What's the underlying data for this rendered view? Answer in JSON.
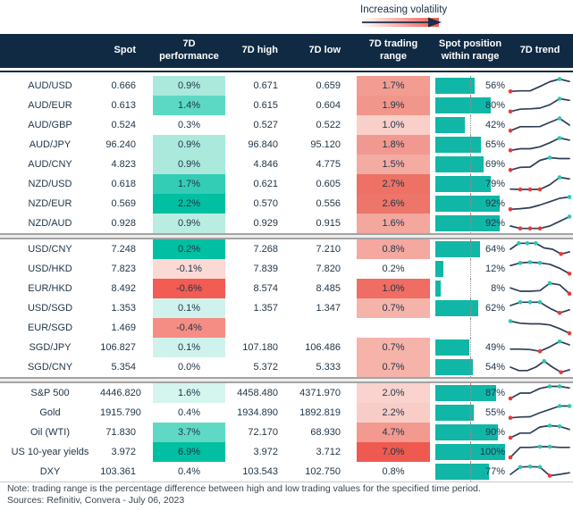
{
  "legend": {
    "label": "Increasing volatility"
  },
  "colors": {
    "header_bg": "#102a43",
    "accent_teal": "#00bfa2",
    "accent_red": "#f2564d",
    "position_bar": "#11b7a6",
    "spark_line": "#2e3e57",
    "spark_high_dot": "#2cc5b4",
    "spark_low_dot": "#e63c36"
  },
  "chart_data": {
    "type": "table",
    "columns": [
      "",
      "Spot",
      "7D performance",
      "7D high",
      "7D low",
      "7D trading range",
      "Spot position within range",
      "7D trend"
    ],
    "sections": [
      {
        "rows": [
          {
            "name": "AUD/USD",
            "spot": "0.666",
            "perf": "0.9%",
            "perf_color": "#abe9dd",
            "high": "0.671",
            "low": "0.659",
            "range": "1.7%",
            "range_color": "#f29c92",
            "position_pct": 56,
            "position_label": "56%",
            "trend": {
              "shape": [
                0.08,
                0.12,
                0.12,
                0.45,
                0.8,
                1.0,
                0.82
              ],
              "high_markers": [
                5
              ],
              "low_markers": [
                0
              ]
            }
          },
          {
            "name": "AUD/EUR",
            "spot": "0.613",
            "perf": "1.4%",
            "perf_color": "#5cd9c5",
            "high": "0.615",
            "low": "0.604",
            "range": "1.9%",
            "range_color": "#f1968b",
            "position_pct": 80,
            "position_label": "80%",
            "trend": {
              "shape": [
                0.05,
                0.22,
                0.25,
                0.3,
                0.55,
                1.0,
                0.88
              ],
              "high_markers": [
                5
              ],
              "low_markers": [
                0
              ]
            }
          },
          {
            "name": "AUD/GBP",
            "spot": "0.524",
            "perf": "0.3%",
            "perf_color": "#ffffff",
            "high": "0.527",
            "low": "0.522",
            "range": "1.0%",
            "range_color": "#f9cfc9",
            "position_pct": 42,
            "position_label": "42%",
            "trend": {
              "shape": [
                0.08,
                0.38,
                0.38,
                0.39,
                0.7,
                1.0,
                0.5
              ],
              "high_markers": [
                5
              ],
              "low_markers": [
                0
              ]
            }
          },
          {
            "name": "AUD/JPY",
            "spot": "96.240",
            "perf": "0.9%",
            "perf_color": "#abe9dd",
            "high": "96.840",
            "low": "95.120",
            "range": "1.8%",
            "range_color": "#f19990",
            "position_pct": 65,
            "position_label": "65%",
            "trend": {
              "shape": [
                0.08,
                0.2,
                0.2,
                0.35,
                0.65,
                1.0,
                0.85
              ],
              "high_markers": [
                5
              ],
              "low_markers": [
                0
              ]
            }
          },
          {
            "name": "AUD/CNY",
            "spot": "4.823",
            "perf": "0.9%",
            "perf_color": "#abe9dd",
            "high": "4.846",
            "low": "4.775",
            "range": "1.5%",
            "range_color": "#f4aba2",
            "position_pct": 69,
            "position_label": "69%",
            "trend": {
              "shape": [
                0.08,
                0.28,
                0.3,
                0.8,
                1.0,
                0.93,
                0.93
              ],
              "high_markers": [
                4
              ],
              "low_markers": [
                0
              ]
            }
          },
          {
            "name": "NZD/USD",
            "spot": "0.618",
            "perf": "1.7%",
            "perf_color": "#33cdb6",
            "high": "0.621",
            "low": "0.605",
            "range": "2.7%",
            "range_color": "#ed7165",
            "position_pct": 79,
            "position_label": "79%",
            "trend": {
              "shape": [
                0.12,
                0.1,
                0.1,
                0.1,
                0.45,
                1.0,
                0.88
              ],
              "high_markers": [
                5
              ],
              "low_markers": [
                1,
                2,
                3
              ]
            }
          },
          {
            "name": "NZD/EUR",
            "spot": "0.569",
            "perf": "2.2%",
            "perf_color": "#00bfa2",
            "high": "0.570",
            "low": "0.556",
            "range": "2.6%",
            "range_color": "#ed7569",
            "position_pct": 92,
            "position_label": "92%",
            "trend": {
              "shape": [
                0.08,
                0.13,
                0.2,
                0.4,
                0.65,
                0.9,
                1.0
              ],
              "high_markers": [
                6
              ],
              "low_markers": [
                0
              ]
            }
          },
          {
            "name": "NZD/AUD",
            "spot": "0.928",
            "perf": "0.9%",
            "perf_color": "#b9ede2",
            "high": "0.929",
            "low": "0.915",
            "range": "1.6%",
            "range_color": "#f3a79d",
            "position_pct": 92,
            "position_label": "92%",
            "trend": {
              "shape": [
                0.3,
                0.12,
                0.12,
                0.12,
                0.3,
                0.65,
                1.0
              ],
              "high_markers": [
                6
              ],
              "low_markers": [
                1,
                2,
                3
              ]
            }
          }
        ]
      },
      {
        "rows": [
          {
            "name": "USD/CNY",
            "spot": "7.248",
            "perf": "0.2%",
            "perf_color": "#00bfa2",
            "high": "7.268",
            "low": "7.210",
            "range": "0.8%",
            "range_color": "#f4a89f",
            "position_pct": 64,
            "position_label": "64%",
            "trend": {
              "shape": [
                0.5,
                0.95,
                0.95,
                0.95,
                0.6,
                0.5,
                0.15,
                0.3
              ],
              "high_markers": [
                1,
                2,
                3
              ],
              "low_markers": [
                6
              ]
            }
          },
          {
            "name": "USD/HKD",
            "spot": "7.823",
            "perf": "-0.1%",
            "perf_color": "#fbd9d5",
            "high": "7.839",
            "low": "7.820",
            "range": "0.2%",
            "range_color": "#ffffff",
            "position_pct": 12,
            "position_label": "12%",
            "trend": {
              "shape": [
                0.75,
                0.95,
                1.0,
                0.95,
                0.85,
                0.55,
                0.15
              ],
              "high_markers": [
                1,
                2,
                3
              ],
              "low_markers": [
                6
              ]
            }
          },
          {
            "name": "EUR/HKD",
            "spot": "8.492",
            "perf": "-0.6%",
            "perf_color": "#f25c53",
            "high": "8.574",
            "low": "8.485",
            "range": "1.0%",
            "range_color": "#ef6d62",
            "position_pct": 8,
            "position_label": "8%",
            "trend": {
              "shape": [
                0.55,
                0.3,
                0.3,
                0.35,
                0.9,
                0.78,
                0.12
              ],
              "high_markers": [
                4
              ],
              "low_markers": [
                6
              ]
            }
          },
          {
            "name": "USD/SGD",
            "spot": "1.353",
            "perf": "0.1%",
            "perf_color": "#cff3ec",
            "high": "1.357",
            "low": "1.347",
            "range": "0.7%",
            "range_color": "#f6b3aa",
            "position_pct": 62,
            "position_label": "62%",
            "trend": {
              "shape": [
                0.7,
                0.95,
                0.95,
                0.95,
                0.5,
                0.15,
                0.38
              ],
              "high_markers": [
                1,
                2,
                3
              ],
              "low_markers": [
                5
              ]
            }
          },
          {
            "name": "EUR/SGD",
            "spot": "1.469",
            "perf": "-0.4%",
            "perf_color": "#f68d84",
            "high": "",
            "low": "",
            "range": "",
            "range_color": "#ffffff",
            "position_pct": null,
            "position_label": "",
            "trend": {
              "shape": [
                1.0,
                0.85,
                0.8,
                0.8,
                0.72,
                0.45,
                0.1
              ],
              "high_markers": [
                0
              ],
              "low_markers": [
                6
              ]
            }
          },
          {
            "name": "SGD/JPY",
            "spot": "106.827",
            "perf": "0.1%",
            "perf_color": "#cff3ec",
            "high": "107.180",
            "low": "106.486",
            "range": "0.7%",
            "range_color": "#f6b3aa",
            "position_pct": 49,
            "position_label": "49%",
            "trend": {
              "shape": [
                0.38,
                0.38,
                0.35,
                0.22,
                0.55,
                0.95,
                0.7
              ],
              "high_markers": [
                5
              ],
              "low_markers": [
                3
              ]
            }
          },
          {
            "name": "SGD/CNY",
            "spot": "5.354",
            "perf": "0.0%",
            "perf_color": "#ffffff",
            "high": "5.372",
            "low": "5.333",
            "range": "0.7%",
            "range_color": "#f6b3aa",
            "position_pct": 54,
            "position_label": "54%",
            "trend": {
              "shape": [
                0.5,
                0.25,
                0.25,
                0.5,
                0.95,
                0.5,
                0.12,
                0.3
              ],
              "high_markers": [
                4
              ],
              "low_markers": [
                6
              ]
            }
          }
        ]
      },
      {
        "rows": [
          {
            "name": "S&P 500",
            "spot": "4446.820",
            "perf": "1.6%",
            "perf_color": "#d5f5ef",
            "high": "4458.480",
            "low": "4371.970",
            "range": "2.0%",
            "range_color": "#fad3ce",
            "position_pct": 87,
            "position_label": "87%",
            "trend": {
              "shape": [
                0.1,
                0.5,
                0.5,
                0.85,
                1.0,
                1.0,
                0.88
              ],
              "high_markers": [
                4,
                5
              ],
              "low_markers": [
                0
              ]
            }
          },
          {
            "name": "Gold",
            "spot": "1915.790",
            "perf": "0.4%",
            "perf_color": "#ffffff",
            "high": "1934.890",
            "low": "1892.819",
            "range": "2.2%",
            "range_color": "#f9cdc7",
            "position_pct": 55,
            "position_label": "55%",
            "trend": {
              "shape": [
                0.12,
                0.18,
                0.2,
                0.5,
                0.75,
                1.0,
                1.0
              ],
              "high_markers": [
                5,
                6
              ],
              "low_markers": [
                0
              ]
            }
          },
          {
            "name": "Oil (WTI)",
            "spot": "71.830",
            "perf": "3.7%",
            "perf_color": "#5fd9c6",
            "high": "72.170",
            "low": "68.930",
            "range": "4.7%",
            "range_color": "#f3998f",
            "position_pct": 90,
            "position_label": "90%",
            "trend": {
              "shape": [
                0.1,
                0.45,
                0.45,
                0.9,
                1.0,
                0.95,
                0.72
              ],
              "high_markers": [
                4,
                5
              ],
              "low_markers": [
                0
              ]
            }
          },
          {
            "name": "US 10-year yields",
            "spot": "3.972",
            "perf": "6.9%",
            "perf_color": "#00bfa2",
            "high": "3.972",
            "low": "3.712",
            "range": "7.0%",
            "range_color": "#ee5a50",
            "position_pct": 100,
            "position_label": "100%",
            "trend": {
              "shape": [
                0.1,
                0.85,
                0.85,
                0.9,
                0.9,
                0.85,
                0.85
              ],
              "high_markers": [
                3,
                4
              ],
              "low_markers": [
                0
              ]
            }
          },
          {
            "name": "DXY",
            "spot": "103.361",
            "perf": "0.4%",
            "perf_color": "#ffffff",
            "high": "103.543",
            "low": "102.750",
            "range": "0.8%",
            "range_color": "#ffffff",
            "position_pct": 77,
            "position_label": "77%",
            "trend": {
              "shape": [
                0.3,
                0.85,
                0.88,
                0.85,
                0.2,
                0.3,
                0.42
              ],
              "high_markers": [
                1,
                2,
                3
              ],
              "low_markers": [
                4
              ]
            }
          }
        ]
      }
    ]
  },
  "footer": {
    "note": "Note: trading range is the percentage difference between high and low trading values for the specified time period.",
    "sources": "Sources: Refinitiv, Convera - July 06, 2023"
  }
}
